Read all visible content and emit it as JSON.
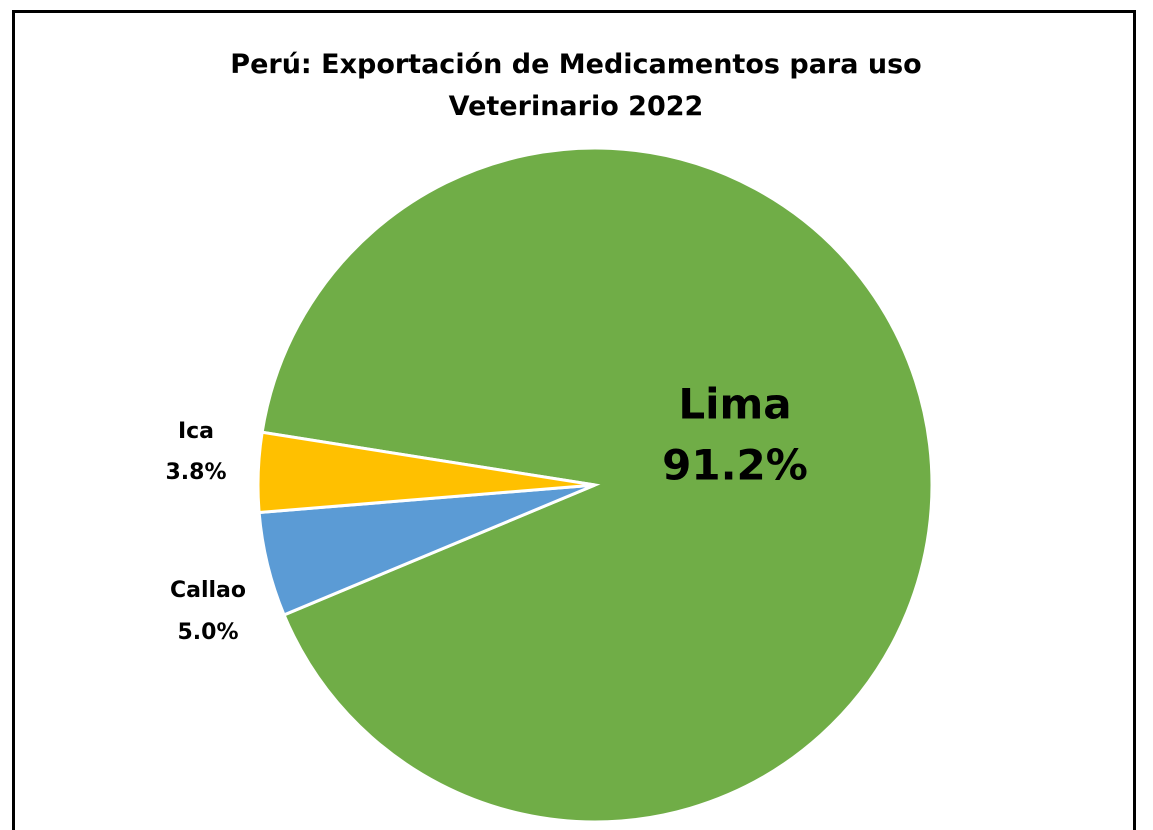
{
  "chart_data": {
    "type": "pie",
    "title": "Perú: Exportación de Medicamentos para uso Veterinario 2022",
    "categories": [
      "Lima",
      "Callao",
      "Ica"
    ],
    "values": [
      91.2,
      5.0,
      3.8
    ],
    "value_labels": [
      "91.2%",
      "5.0%",
      "3.8%"
    ],
    "colors": [
      "#70ad47",
      "#5b9bd5",
      "#ffc000"
    ]
  }
}
